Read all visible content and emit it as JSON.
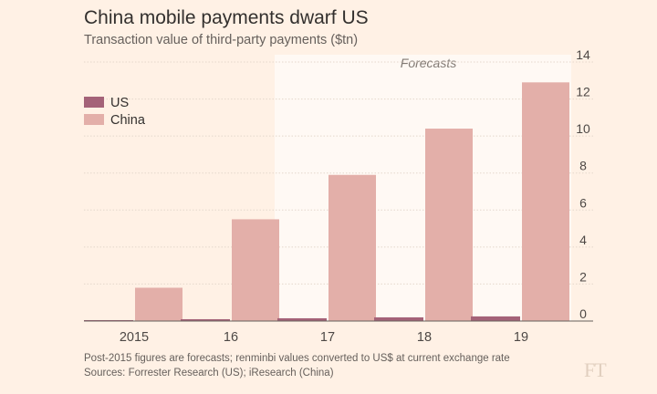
{
  "chart_data": {
    "type": "bar",
    "title": "China mobile payments dwarf US",
    "subtitle": "Transaction value of third-party payments ($tn)",
    "categories": [
      "2015",
      "16",
      "17",
      "18",
      "19"
    ],
    "series": [
      {
        "name": "US",
        "color": "#a46278",
        "values": [
          0.05,
          0.1,
          0.15,
          0.2,
          0.25
        ]
      },
      {
        "name": "China",
        "color": "#e3afa9",
        "values": [
          1.8,
          5.5,
          7.9,
          10.4,
          12.9
        ]
      }
    ],
    "ylim": [
      0,
      14
    ],
    "yticks": [
      "0",
      "2",
      "4",
      "6",
      "8",
      "10",
      "12",
      "14"
    ],
    "y_axis_side": "right",
    "grid": true,
    "legend_position": "top-left",
    "forecast_label": "Forecasts",
    "forecast_from_category": "16"
  },
  "footnote": "Post-2015 figures are forecasts; renminbi values converted to US$ at current exchange rate",
  "source": "Sources: Forrester Research (US); iResearch (China)",
  "brand": "FT",
  "colors": {
    "background": "#fff1e5",
    "forecast_shade": "#fff9f4",
    "grid": "#e4d7cb",
    "baseline": "#66605c"
  }
}
